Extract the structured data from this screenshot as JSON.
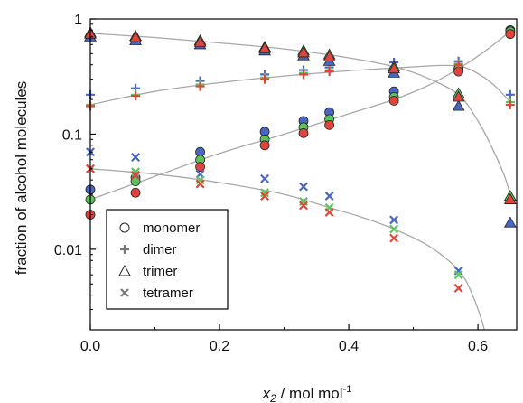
{
  "chart_data": {
    "type": "scatter",
    "xlabel_symbol": "x",
    "xlabel_sub": "2",
    "xlabel_rest": " / mol mol",
    "xlabel_sup": "-1",
    "ylabel": "fraction of alcohol molecules",
    "y_scale": "log",
    "xlim": [
      0.0,
      0.66
    ],
    "ylim": [
      0.002,
      1.0
    ],
    "xticks": [
      0.0,
      0.2,
      0.4,
      0.6
    ],
    "xtick_labels": [
      "0.0",
      "0.2",
      "0.4",
      "0.6"
    ],
    "yticks": [
      1,
      0.1,
      0.01
    ],
    "ytick_labels": [
      "1",
      "0.1",
      "0.01"
    ],
    "grid": false,
    "legend_placement": "bottom-left",
    "legend": [
      {
        "label": "monomer",
        "marker": "circle"
      },
      {
        "label": "dimer",
        "marker": "plus"
      },
      {
        "label": "trimer",
        "marker": "triangle"
      },
      {
        "label": "tetramer",
        "marker": "cross"
      }
    ],
    "sets": {
      "blue": "#4a66c4",
      "green": "#5cc45a",
      "red": "#e0453b"
    },
    "series": [
      {
        "species": "monomer",
        "marker": "circle",
        "points": {
          "blue": [
            [
              0.0,
              0.033
            ],
            [
              0.07,
              0.042
            ],
            [
              0.17,
              0.07
            ],
            [
              0.27,
              0.105
            ],
            [
              0.33,
              0.13
            ],
            [
              0.37,
              0.155
            ],
            [
              0.47,
              0.235
            ],
            [
              0.57,
              0.37
            ],
            [
              0.65,
              0.8
            ]
          ],
          "green": [
            [
              0.0,
              0.027
            ],
            [
              0.07,
              0.039
            ],
            [
              0.17,
              0.06
            ],
            [
              0.27,
              0.09
            ],
            [
              0.33,
              0.115
            ],
            [
              0.37,
              0.135
            ],
            [
              0.47,
              0.21
            ],
            [
              0.57,
              0.37
            ],
            [
              0.65,
              0.78
            ]
          ],
          "red": [
            [
              0.0,
              0.02
            ],
            [
              0.07,
              0.031
            ],
            [
              0.17,
              0.052
            ],
            [
              0.27,
              0.08
            ],
            [
              0.33,
              0.102
            ],
            [
              0.37,
              0.12
            ],
            [
              0.47,
              0.195
            ],
            [
              0.57,
              0.35
            ],
            [
              0.65,
              0.74
            ]
          ]
        }
      },
      {
        "species": "dimer",
        "marker": "plus",
        "points": {
          "blue": [
            [
              0.0,
              0.22
            ],
            [
              0.07,
              0.25
            ],
            [
              0.17,
              0.29
            ],
            [
              0.27,
              0.33
            ],
            [
              0.33,
              0.36
            ],
            [
              0.37,
              0.38
            ],
            [
              0.47,
              0.42
            ],
            [
              0.57,
              0.43
            ],
            [
              0.65,
              0.22
            ]
          ],
          "green": [
            [
              0.0,
              0.18
            ],
            [
              0.07,
              0.22
            ],
            [
              0.17,
              0.27
            ],
            [
              0.27,
              0.31
            ],
            [
              0.33,
              0.34
            ],
            [
              0.37,
              0.36
            ],
            [
              0.47,
              0.38
            ],
            [
              0.57,
              0.41
            ],
            [
              0.65,
              0.19
            ]
          ],
          "red": [
            [
              0.0,
              0.175
            ],
            [
              0.07,
              0.215
            ],
            [
              0.17,
              0.26
            ],
            [
              0.27,
              0.3
            ],
            [
              0.33,
              0.33
            ],
            [
              0.37,
              0.35
            ],
            [
              0.47,
              0.37
            ],
            [
              0.57,
              0.4
            ],
            [
              0.65,
              0.18
            ]
          ]
        }
      },
      {
        "species": "trimer",
        "marker": "triangle",
        "points": {
          "blue": [
            [
              0.0,
              0.7
            ],
            [
              0.07,
              0.65
            ],
            [
              0.17,
              0.6
            ],
            [
              0.27,
              0.53
            ],
            [
              0.33,
              0.48
            ],
            [
              0.37,
              0.43
            ],
            [
              0.47,
              0.34
            ],
            [
              0.57,
              0.175
            ],
            [
              0.65,
              0.017
            ]
          ],
          "green": [
            [
              0.0,
              0.76
            ],
            [
              0.07,
              0.71
            ],
            [
              0.17,
              0.65
            ],
            [
              0.27,
              0.57
            ],
            [
              0.33,
              0.53
            ],
            [
              0.37,
              0.49
            ],
            [
              0.47,
              0.385
            ],
            [
              0.57,
              0.225
            ],
            [
              0.65,
              0.029
            ]
          ],
          "red": [
            [
              0.0,
              0.74
            ],
            [
              0.07,
              0.69
            ],
            [
              0.17,
              0.63
            ],
            [
              0.27,
              0.555
            ],
            [
              0.33,
              0.51
            ],
            [
              0.37,
              0.47
            ],
            [
              0.47,
              0.37
            ],
            [
              0.57,
              0.21
            ],
            [
              0.65,
              0.027
            ]
          ]
        }
      },
      {
        "species": "tetramer",
        "marker": "cross",
        "points": {
          "blue": [
            [
              0.0,
              0.07
            ],
            [
              0.07,
              0.063
            ],
            [
              0.17,
              0.045
            ],
            [
              0.27,
              0.041
            ],
            [
              0.33,
              0.035
            ],
            [
              0.37,
              0.029
            ],
            [
              0.47,
              0.018
            ],
            [
              0.57,
              0.0065
            ]
          ],
          "green": [
            [
              0.0,
              0.05
            ],
            [
              0.07,
              0.047
            ],
            [
              0.17,
              0.04
            ],
            [
              0.27,
              0.031
            ],
            [
              0.33,
              0.026
            ],
            [
              0.37,
              0.023
            ],
            [
              0.47,
              0.015
            ],
            [
              0.57,
              0.006
            ]
          ],
          "red": [
            [
              0.0,
              0.05
            ],
            [
              0.07,
              0.044
            ],
            [
              0.17,
              0.037
            ],
            [
              0.27,
              0.029
            ],
            [
              0.33,
              0.024
            ],
            [
              0.37,
              0.021
            ],
            [
              0.47,
              0.0125
            ],
            [
              0.57,
              0.0046
            ]
          ]
        }
      }
    ],
    "fit_curves": [
      {
        "species": "monomer",
        "points": [
          [
            0.0,
            0.027
          ],
          [
            0.1,
            0.043
          ],
          [
            0.2,
            0.068
          ],
          [
            0.3,
            0.1
          ],
          [
            0.4,
            0.15
          ],
          [
            0.47,
            0.2
          ],
          [
            0.52,
            0.26
          ],
          [
            0.57,
            0.37
          ],
          [
            0.61,
            0.52
          ],
          [
            0.65,
            0.78
          ]
        ]
      },
      {
        "species": "dimer",
        "points": [
          [
            0.0,
            0.18
          ],
          [
            0.1,
            0.235
          ],
          [
            0.2,
            0.28
          ],
          [
            0.3,
            0.32
          ],
          [
            0.4,
            0.355
          ],
          [
            0.47,
            0.375
          ],
          [
            0.52,
            0.39
          ],
          [
            0.55,
            0.395
          ],
          [
            0.58,
            0.38
          ],
          [
            0.61,
            0.31
          ],
          [
            0.63,
            0.25
          ],
          [
            0.65,
            0.19
          ]
        ]
      },
      {
        "species": "trimer",
        "points": [
          [
            0.0,
            0.75
          ],
          [
            0.1,
            0.69
          ],
          [
            0.2,
            0.62
          ],
          [
            0.3,
            0.55
          ],
          [
            0.4,
            0.46
          ],
          [
            0.47,
            0.385
          ],
          [
            0.52,
            0.31
          ],
          [
            0.57,
            0.22
          ],
          [
            0.6,
            0.13
          ],
          [
            0.62,
            0.08
          ],
          [
            0.64,
            0.045
          ],
          [
            0.65,
            0.03
          ]
        ]
      },
      {
        "species": "tetramer",
        "points": [
          [
            0.0,
            0.05
          ],
          [
            0.1,
            0.045
          ],
          [
            0.2,
            0.038
          ],
          [
            0.3,
            0.03
          ],
          [
            0.37,
            0.023
          ],
          [
            0.42,
            0.019
          ],
          [
            0.47,
            0.015
          ],
          [
            0.52,
            0.011
          ],
          [
            0.56,
            0.0075
          ],
          [
            0.58,
            0.0055
          ],
          [
            0.595,
            0.0036
          ],
          [
            0.605,
            0.0025
          ],
          [
            0.61,
            0.002
          ]
        ]
      }
    ]
  }
}
